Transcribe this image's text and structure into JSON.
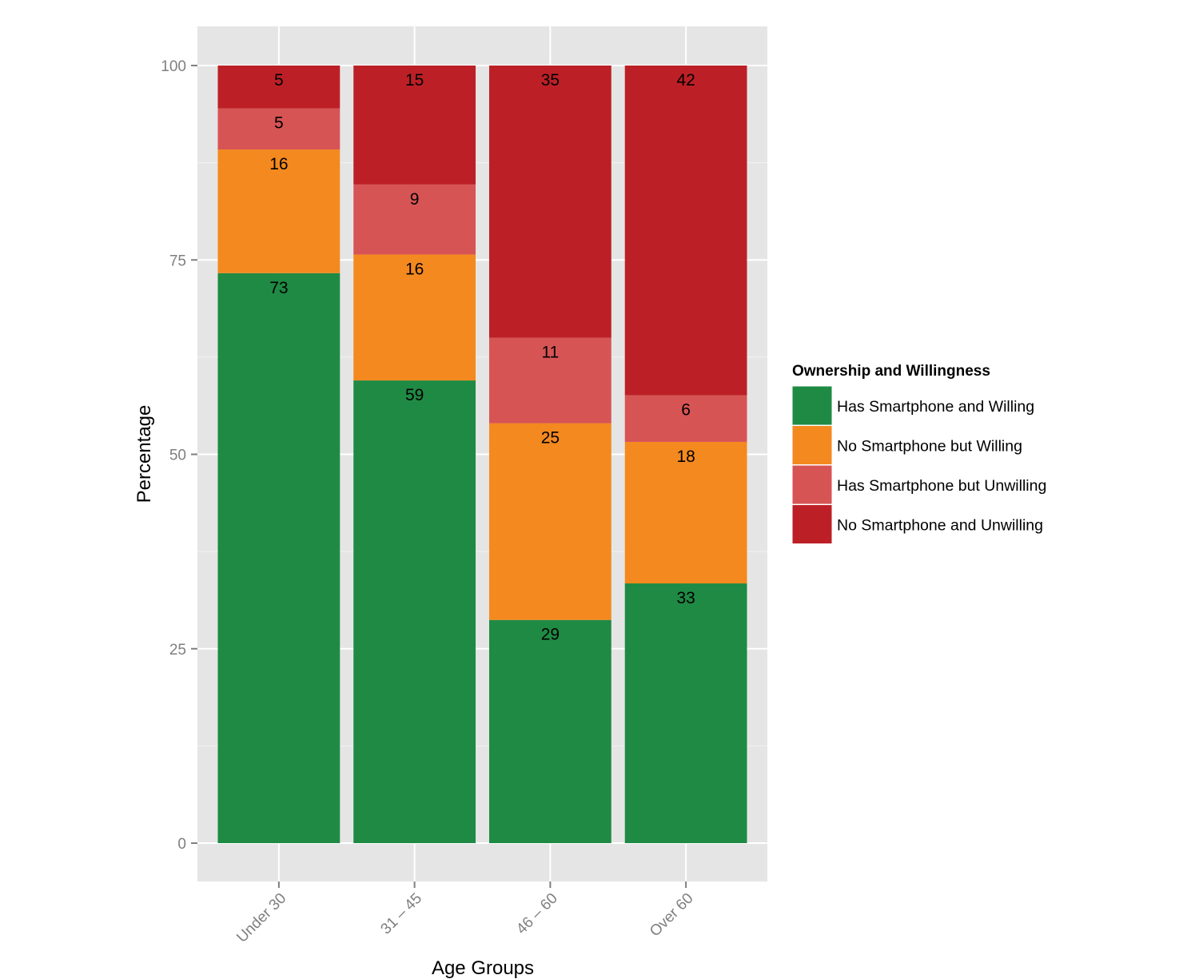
{
  "chart_data": {
    "type": "bar",
    "stacked": true,
    "title": "",
    "xlabel": "Age Groups",
    "ylabel": "Percentage",
    "ylim": [
      0,
      100
    ],
    "yticks": [
      0,
      25,
      50,
      75,
      100
    ],
    "grid": true,
    "categories": [
      "Under 30",
      "31 – 45",
      "46 – 60",
      "Over 60"
    ],
    "legend": {
      "title": "Ownership and Willingness",
      "placement": "right"
    },
    "series": [
      {
        "name": "Has Smartphone and Willing",
        "color": "#1f8a44",
        "values": [
          73,
          59,
          29,
          33
        ]
      },
      {
        "name": "No Smartphone but Willing",
        "color": "#f4891f",
        "values": [
          16,
          16,
          25,
          18
        ]
      },
      {
        "name": "Has Smartphone but Unwilling",
        "color": "#d75455",
        "values": [
          5,
          9,
          11,
          6
        ]
      },
      {
        "name": "No Smartphone and Unwilling",
        "color": "#bc2026",
        "values": [
          5,
          15,
          35,
          42
        ]
      }
    ],
    "stack_boundaries_note": "Segment heights as drawn (each bar sums to 100)",
    "drawn_segment_heights": [
      [
        73.3,
        15.9,
        5.3,
        5.5
      ],
      [
        59.5,
        16.2,
        9.0,
        15.3
      ],
      [
        28.7,
        25.3,
        11.0,
        35.0
      ],
      [
        33.4,
        18.2,
        6.0,
        42.4
      ]
    ]
  }
}
